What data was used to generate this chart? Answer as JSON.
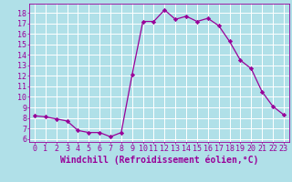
{
  "x": [
    0,
    1,
    2,
    3,
    4,
    5,
    6,
    7,
    8,
    9,
    10,
    11,
    12,
    13,
    14,
    15,
    16,
    17,
    18,
    19,
    20,
    21,
    22,
    23
  ],
  "y": [
    8.2,
    8.1,
    7.9,
    7.7,
    6.8,
    6.6,
    6.6,
    6.2,
    6.6,
    12.1,
    17.2,
    17.2,
    18.3,
    17.4,
    17.7,
    17.2,
    17.5,
    16.8,
    15.3,
    13.5,
    12.7,
    10.5,
    9.1,
    8.3
  ],
  "line_color": "#990099",
  "marker": "D",
  "marker_size": 2.2,
  "xlabel": "Windchill (Refroidissement éolien,°C)",
  "xlabel_fontsize": 7,
  "ylabel_ticks": [
    6,
    7,
    8,
    9,
    10,
    11,
    12,
    13,
    14,
    15,
    16,
    17,
    18
  ],
  "xtick_labels": [
    "0",
    "1",
    "2",
    "3",
    "4",
    "5",
    "6",
    "7",
    "8",
    "9",
    "10",
    "11",
    "12",
    "13",
    "14",
    "15",
    "16",
    "17",
    "18",
    "19",
    "20",
    "21",
    "22",
    "23"
  ],
  "xlim": [
    -0.5,
    23.5
  ],
  "ylim": [
    5.7,
    18.9
  ],
  "bg_color": "#b0e0e8",
  "grid_color": "#ffffff",
  "tick_color": "#990099",
  "label_color": "#990099",
  "tick_fontsize": 6.0,
  "lw": 0.9
}
